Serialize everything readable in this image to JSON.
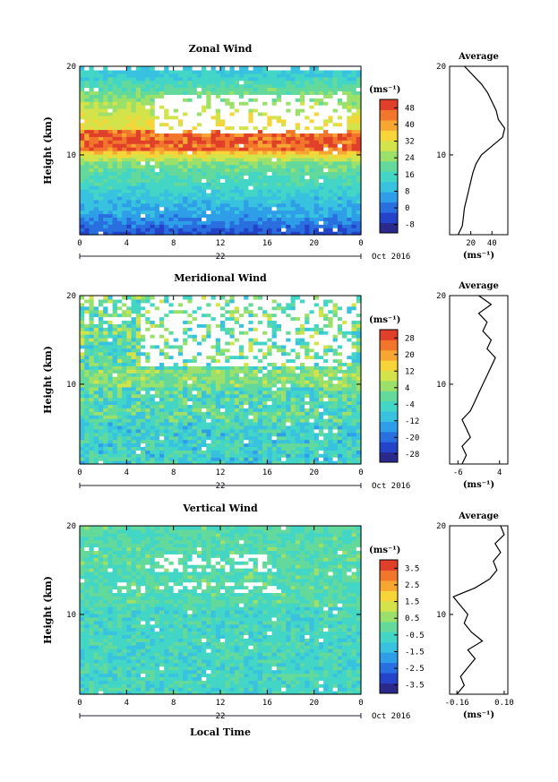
{
  "common": {
    "xticks": [
      "0",
      "4",
      "8",
      "12",
      "16",
      "20",
      "0"
    ],
    "day": "22",
    "month": "Oct 2016",
    "xlabel": "Local Time",
    "ylabel": "Height (km)",
    "yticks": [
      "20",
      "10"
    ],
    "avg_title": "Average",
    "units": "(ms⁻¹)"
  },
  "colors": {
    "scale": [
      "#2b2a8c",
      "#2344c8",
      "#2a6fe0",
      "#2f9ee8",
      "#38c2e0",
      "#43d6c6",
      "#63d99b",
      "#9be06a",
      "#d3e34a",
      "#f6d53a",
      "#f8a632",
      "#f1752a",
      "#e0402a"
    ],
    "masked": "#ffffff"
  },
  "chart_data": [
    {
      "type": "heatmap",
      "title": "Zonal Wind",
      "xlabel": "",
      "ylabel": "Height (km)",
      "xlim": [
        0,
        24
      ],
      "ylim": [
        1,
        20
      ],
      "colorbar_ticks": [
        "48",
        "40",
        "32",
        "24",
        "16",
        "8",
        "0",
        "-8"
      ],
      "colorbar_range": [
        -8,
        52
      ],
      "profile": {
        "title": "Average",
        "xlabel": "(ms⁻¹)",
        "xticks": [
          "20",
          "40"
        ],
        "xlim": [
          0,
          55
        ],
        "z": [
          1,
          2,
          3,
          4,
          5,
          6,
          7,
          8,
          9,
          10,
          11,
          12,
          13,
          14,
          15,
          16,
          17,
          18,
          19,
          20
        ],
        "values": [
          8,
          12,
          13,
          14,
          16,
          18,
          20,
          22,
          25,
          30,
          40,
          50,
          52,
          46,
          44,
          40,
          36,
          30,
          22,
          14
        ]
      }
    },
    {
      "type": "heatmap",
      "title": "Meridional Wind",
      "xlabel": "",
      "ylabel": "Height (km)",
      "xlim": [
        0,
        24
      ],
      "ylim": [
        1,
        20
      ],
      "colorbar_ticks": [
        "28",
        "20",
        "12",
        "4",
        "-4",
        "-12",
        "-20",
        "-28"
      ],
      "colorbar_range": [
        -32,
        32
      ],
      "profile": {
        "title": "Average",
        "xlabel": "(ms⁻¹)",
        "xticks": [
          "-6",
          "4"
        ],
        "xlim": [
          -8,
          6
        ],
        "z": [
          1,
          2,
          3,
          4,
          5,
          6,
          7,
          8,
          9,
          10,
          11,
          12,
          13,
          14,
          15,
          16,
          17,
          18,
          19,
          20
        ],
        "values": [
          -5,
          -4,
          -5,
          -3,
          -4,
          -5,
          -3,
          -2,
          -1,
          0,
          1,
          2,
          3,
          1,
          2,
          0,
          1,
          -1,
          2,
          -1
        ]
      }
    },
    {
      "type": "heatmap",
      "title": "Vertical Wind",
      "xlabel": "Local Time",
      "ylabel": "Height (km)",
      "xlim": [
        0,
        24
      ],
      "ylim": [
        1,
        20
      ],
      "colorbar_ticks": [
        "3.5",
        "2.5",
        "1.5",
        "0.5",
        "-0.5",
        "-1.5",
        "-2.5",
        "-3.5"
      ],
      "colorbar_range": [
        -4,
        4
      ],
      "profile": {
        "title": "Average",
        "xlabel": "(ms⁻¹)",
        "xticks": [
          "-0.16",
          "0.10"
        ],
        "xlim": [
          -0.2,
          0.12
        ],
        "z": [
          1,
          2,
          3,
          4,
          5,
          6,
          7,
          8,
          9,
          10,
          11,
          12,
          13,
          14,
          15,
          16,
          17,
          18,
          19,
          20
        ],
        "values": [
          -0.16,
          -0.12,
          -0.14,
          -0.1,
          -0.06,
          -0.1,
          -0.02,
          -0.08,
          -0.12,
          -0.1,
          -0.14,
          -0.18,
          -0.06,
          0.02,
          0.06,
          0.04,
          0.08,
          0.05,
          0.1,
          0.08
        ]
      }
    }
  ]
}
